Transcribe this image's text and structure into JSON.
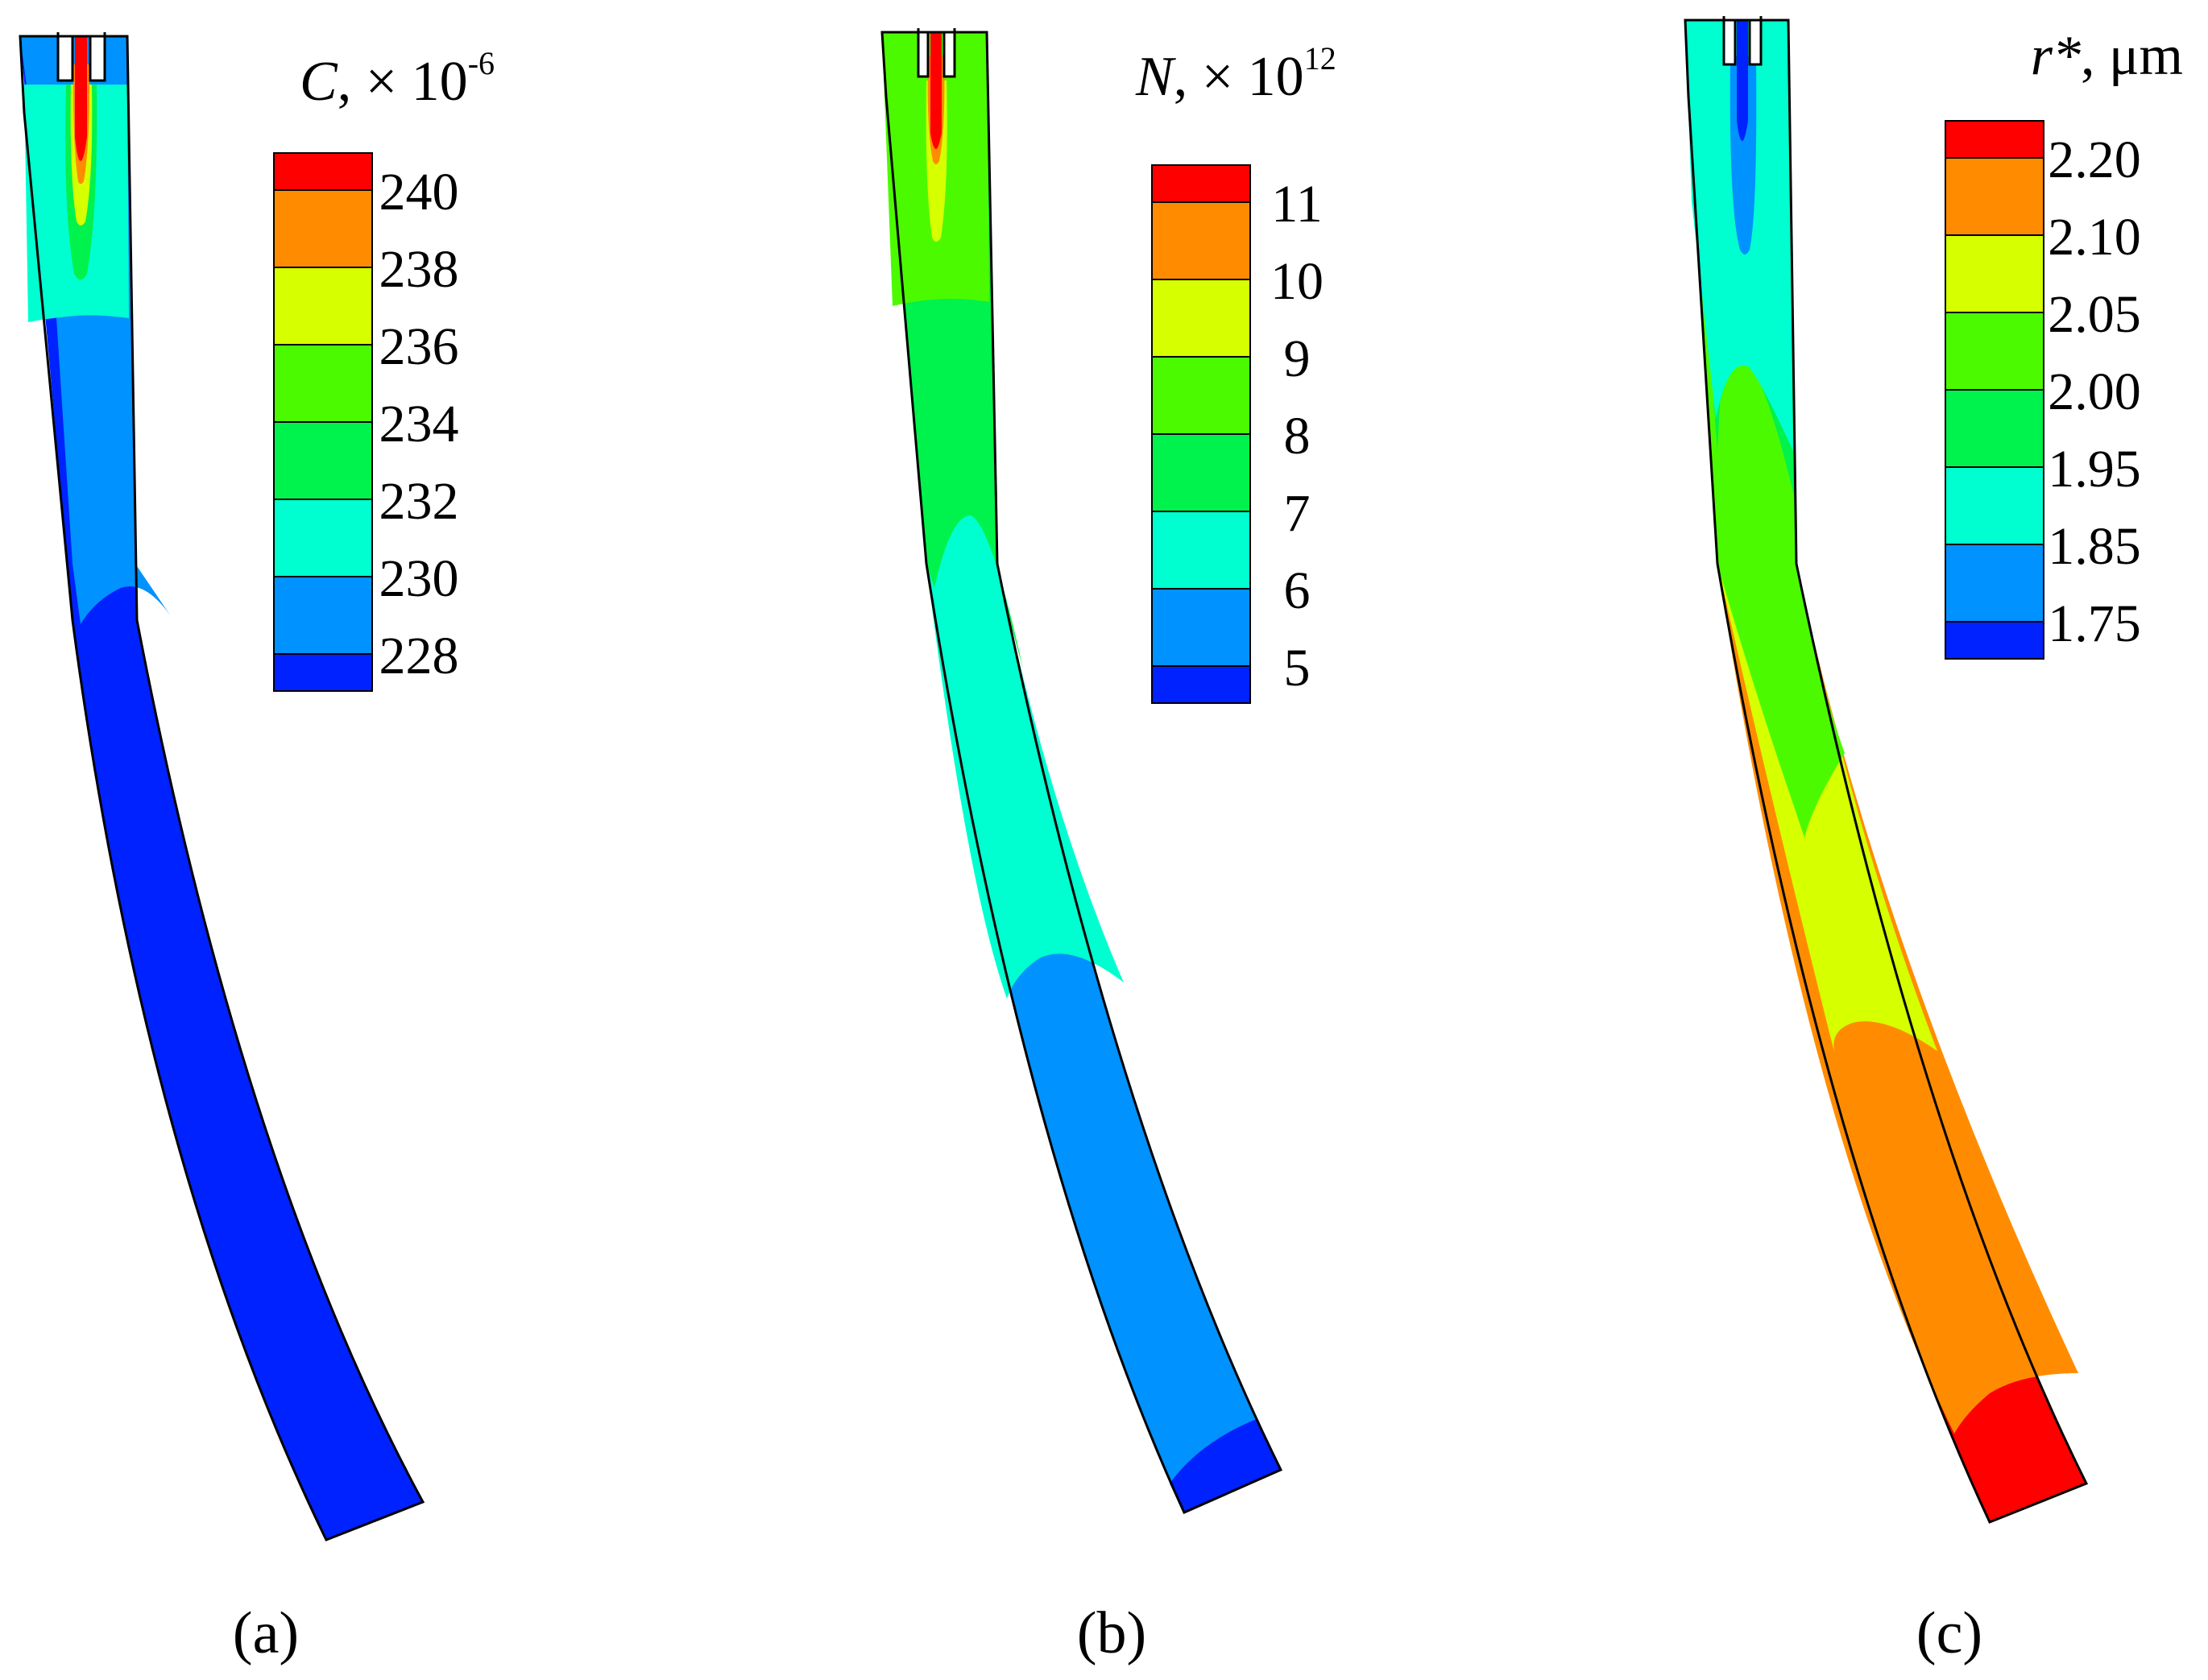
{
  "panels": [
    {
      "id": "a",
      "label": "(a)",
      "legend": {
        "title": "C",
        "title_suffix": ", × 10",
        "title_exponent": "-6",
        "ticks": [
          "240",
          "238",
          "236",
          "234",
          "232",
          "230",
          "228"
        ],
        "colors": [
          "#ff0000",
          "#ff8c00",
          "#d6ff00",
          "#4cfa00",
          "#00f24c",
          "#00ffd0",
          "#0092ff",
          "#0022ff"
        ]
      }
    },
    {
      "id": "b",
      "label": "(b)",
      "legend": {
        "title": "N",
        "title_suffix": ", × 10",
        "title_exponent": "12",
        "ticks": [
          "11",
          "10",
          "9",
          "8",
          "7",
          "6",
          "5"
        ],
        "colors": [
          "#ff0000",
          "#ff8c00",
          "#d6ff00",
          "#4cfa00",
          "#00f24c",
          "#00ffd0",
          "#0092ff",
          "#0022ff"
        ]
      }
    },
    {
      "id": "c",
      "label": "(c)",
      "legend": {
        "title": "r*",
        "title_suffix": ", μm",
        "title_exponent": "",
        "ticks": [
          "2.20",
          "2.10",
          "2.05",
          "2.00",
          "1.95",
          "1.85",
          "1.75"
        ],
        "colors": [
          "#ff0000",
          "#ff8c00",
          "#d6ff00",
          "#4cfa00",
          "#00f24c",
          "#00ffd0",
          "#0092ff",
          "#0022ff"
        ]
      }
    }
  ]
}
